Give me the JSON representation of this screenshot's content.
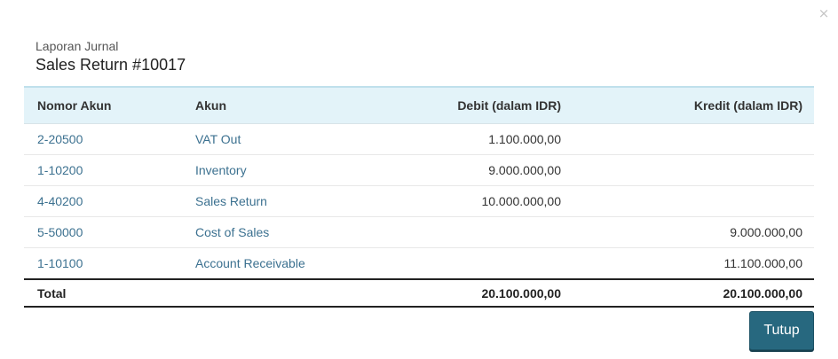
{
  "modal": {
    "close_symbol": "×",
    "subtitle": "Laporan Jurnal",
    "title": "Sales Return #10017",
    "close_button_label": "Tutup"
  },
  "table": {
    "headers": {
      "account_number": "Nomor Akun",
      "account": "Akun",
      "debit": "Debit (dalam IDR)",
      "credit": "Kredit (dalam IDR)"
    },
    "rows": [
      {
        "account_number": "2-20500",
        "account": "VAT Out",
        "debit": "1.100.000,00",
        "credit": ""
      },
      {
        "account_number": "1-10200",
        "account": "Inventory",
        "debit": "9.000.000,00",
        "credit": ""
      },
      {
        "account_number": "4-40200",
        "account": "Sales Return",
        "debit": "10.000.000,00",
        "credit": ""
      },
      {
        "account_number": "5-50000",
        "account": "Cost of Sales",
        "debit": "",
        "credit": "9.000.000,00"
      },
      {
        "account_number": "1-10100",
        "account": "Account Receivable",
        "debit": "",
        "credit": "11.100.000,00"
      }
    ],
    "total": {
      "label": "Total",
      "debit": "20.100.000,00",
      "credit": "20.100.000,00"
    }
  },
  "colors": {
    "header_bg": "#e3f3f9",
    "link": "#3c7190",
    "primary_button": "#27687f"
  }
}
